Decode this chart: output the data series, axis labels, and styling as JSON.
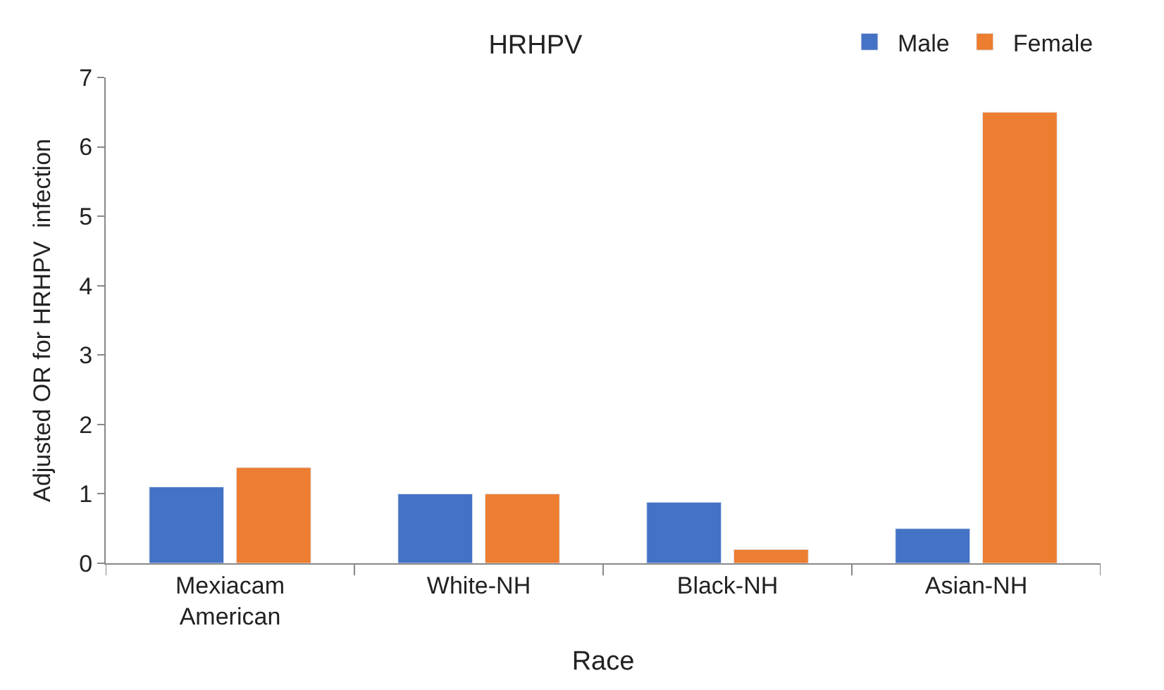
{
  "chart_data": {
    "type": "bar",
    "title": "HRHPV",
    "xlabel": "Race",
    "ylabel": "Adjusted OR for HRHPV  infection",
    "categories": [
      "Mexiacam\nAmerican",
      "White-NH",
      "Black-NH",
      "Asian-NH"
    ],
    "series": [
      {
        "name": "Male",
        "color": "#4472c4",
        "values": [
          1.1,
          1.0,
          0.88,
          0.5
        ]
      },
      {
        "name": "Female",
        "color": "#ed7d31",
        "values": [
          1.38,
          1.0,
          0.2,
          6.5
        ]
      }
    ],
    "ylim": [
      0,
      7
    ],
    "yticks": [
      0,
      1,
      2,
      3,
      4,
      5,
      6,
      7
    ],
    "legend": "top right"
  }
}
